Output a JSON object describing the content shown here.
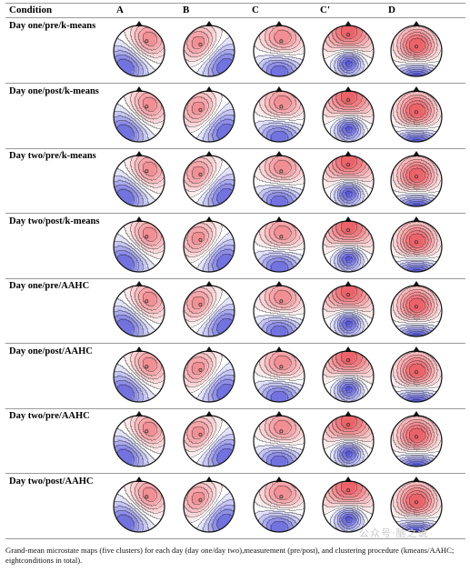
{
  "header": {
    "condition_label": "Condition",
    "columns": [
      "A",
      "B",
      "C",
      "C'",
      "D"
    ]
  },
  "rows": [
    {
      "label": "Day one/pre/k-means",
      "maps": [
        "A",
        "B",
        "C",
        "C'",
        "D"
      ]
    },
    {
      "label": "Day one/post/k-means",
      "maps": [
        "A",
        "B",
        "C",
        "C'",
        "D"
      ]
    },
    {
      "label": "Day two/pre/k-means",
      "maps": [
        "A",
        "B",
        "C",
        "C'",
        "D"
      ]
    },
    {
      "label": "Day two/post/k-means",
      "maps": [
        "A",
        "B",
        "C",
        "C'",
        "D"
      ]
    },
    {
      "label": "Day one/pre/AAHC",
      "maps": [
        "A",
        "B",
        "C",
        "C'",
        "D"
      ]
    },
    {
      "label": "Day one/post/AAHC",
      "maps": [
        "A",
        "B",
        "C",
        "C'",
        "D"
      ]
    },
    {
      "label": "Day two/pre/AAHC",
      "maps": [
        "A",
        "B",
        "C",
        "C'",
        "D"
      ]
    },
    {
      "label": "Day two/post/AAHC",
      "maps": [
        "A",
        "B",
        "C",
        "C'",
        "D"
      ]
    }
  ],
  "caption": "Grand-mean microstate maps (five clusters) for each day (day one/day two),measurement (pre/post), and clustering procedure (kmeans/AAHC; eightconditions in total).",
  "watermark": "公众号·脑之说",
  "colors": {
    "positive": "#e8474f",
    "negative": "#3030d0",
    "neutral": "#ffffff",
    "contour": "#333333"
  }
}
